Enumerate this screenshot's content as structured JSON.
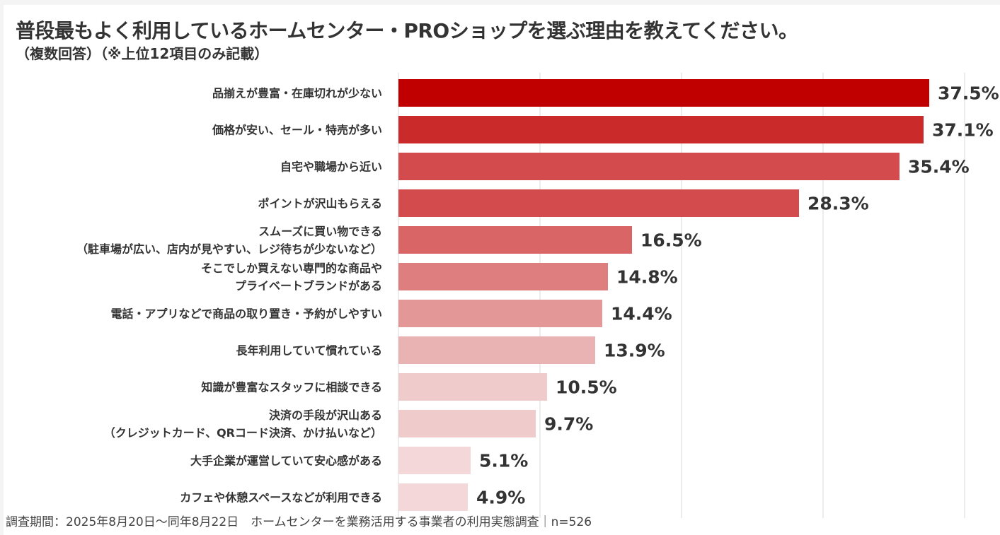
{
  "chart_data": {
    "type": "bar",
    "orientation": "horizontal",
    "title": "普段最もよく利用しているホームセンター・PROショップを選ぶ理由を教えてください。",
    "subtitle": "（複数回答）（※上位12項目のみ記載）",
    "categories": [
      [
        "品揃えが豊富・在庫切れが少ない"
      ],
      [
        "価格が安い、セール・特売が多い"
      ],
      [
        "自宅や職場から近い"
      ],
      [
        "ポイントが沢山もらえる"
      ],
      [
        "スムーズに買い物できる",
        "（駐車場が広い、店内が見やすい、レジ待ちが少ないなど）"
      ],
      [
        "そこでしか買えない専門的な商品や",
        "プライベートブランドがある"
      ],
      [
        "電話・アプリなどで商品の取り置き・予約がしやすい"
      ],
      [
        "長年利用していて慣れている"
      ],
      [
        "知識が豊富なスタッフに相談できる"
      ],
      [
        "決済の手段が沢山ある",
        "（クレジットカード、QRコード決済、かけ払いなど）"
      ],
      [
        "大手企業が運営していて安心感がある"
      ],
      [
        "カフェや休憩スペースなどが利用できる"
      ]
    ],
    "values": [
      37.5,
      37.1,
      35.4,
      28.3,
      16.5,
      14.8,
      14.4,
      13.9,
      10.5,
      9.7,
      5.1,
      4.9
    ],
    "value_labels": [
      "37.5%",
      "37.1%",
      "35.4%",
      "28.3%",
      "16.5%",
      "14.8%",
      "14.4%",
      "13.9%",
      "10.5%",
      "9.7%",
      "5.1%",
      "4.9%"
    ],
    "colors": [
      "#c00000",
      "#cb2a2b",
      "#d44b4e",
      "#d44b4e",
      "#da6566",
      "#df7e7e",
      "#e49797",
      "#e9b3b3",
      "#efcbcc",
      "#efcbcc",
      "#f3d7d9",
      "#f3d7d9"
    ],
    "xlim": [
      0,
      40
    ],
    "gridlines": [
      0,
      10,
      20,
      30,
      40
    ],
    "grid": true,
    "legend": "none",
    "footer": "調査期間：2025年8月20日〜同年8月22日　ホームセンターを業務活用する事業者の利用実態調査｜n=526"
  }
}
